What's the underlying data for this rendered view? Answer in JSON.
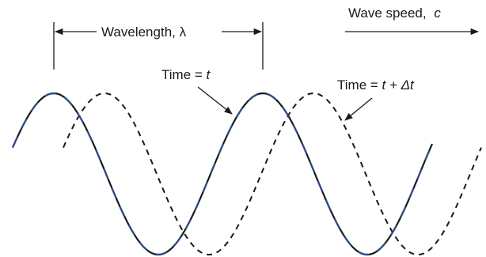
{
  "labels": {
    "wavelength": "Wavelength, λ",
    "wave_speed_text": "Wave speed,",
    "wave_speed_symbol": "c",
    "time_t_prefix": "Time = ",
    "time_t_var": "t",
    "time_dt_prefix": "Time = ",
    "time_dt_expr": "t + Δt"
  },
  "waves": {
    "current": {
      "style": "solid-with-dashes",
      "color": "#1a1a1a",
      "accent": "#2d4b8a"
    },
    "later": {
      "style": "dashed",
      "color": "#1a1a1a"
    }
  }
}
